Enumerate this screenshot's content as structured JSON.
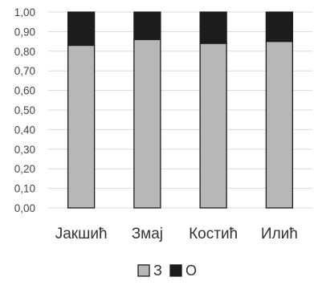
{
  "chart_data": {
    "type": "bar",
    "stacked": true,
    "categories": [
      "Јакшић",
      "Змај",
      "Костић",
      "Илић"
    ],
    "series": [
      {
        "name": "З",
        "values": [
          0.83,
          0.86,
          0.84,
          0.85
        ],
        "color": "#b7b7b7"
      },
      {
        "name": "О",
        "values": [
          0.17,
          0.14,
          0.16,
          0.15
        ],
        "color": "#1c1c1c"
      }
    ],
    "ylim": [
      0,
      1
    ],
    "yticks": [
      "0,00",
      "0,10",
      "0,20",
      "0,30",
      "0,40",
      "0,50",
      "0,60",
      "0,70",
      "0,80",
      "0,90",
      "1,00"
    ],
    "grid": true,
    "legend": "bottom",
    "gridline_color": "#d9d9d9",
    "bar_outline_color": "#1c1c1c"
  }
}
